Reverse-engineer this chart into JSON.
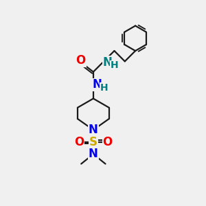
{
  "background_color": "#f0f0f0",
  "bond_color": "#1a1a1a",
  "bond_width": 1.6,
  "atom_colors": {
    "N_blue": "#0000ee",
    "N_teal": "#008080",
    "O": "#ee0000",
    "S": "#ccaa00",
    "H_teal": "#008080"
  },
  "figsize": [
    3.0,
    3.0
  ],
  "dpi": 100,
  "xlim": [
    0,
    10
  ],
  "ylim": [
    0,
    10
  ],
  "font_size": 11
}
